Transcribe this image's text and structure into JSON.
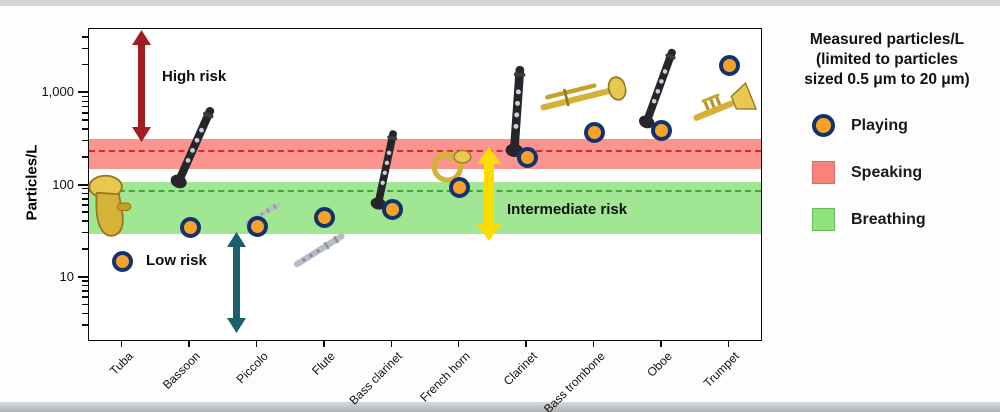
{
  "legend": {
    "title": "Measured particles/L\n(limited to particles\nsized 0.5 μm to 20 μm)",
    "items": [
      {
        "label": "Playing",
        "marker": "circle",
        "fill": "#F6A228",
        "stroke": "#14336E"
      },
      {
        "label": "Speaking",
        "marker": "square",
        "fill": "#F8837A",
        "stroke": "#D96C63"
      },
      {
        "label": "Breathing",
        "marker": "square",
        "fill": "#90E27F",
        "stroke": "#63BE55"
      }
    ]
  },
  "chart_data": {
    "type": "scatter",
    "title": "",
    "xlabel": "",
    "ylabel": "Particles/L",
    "yscale": "log",
    "ylim": [
      2,
      5000
    ],
    "yticks": [
      10,
      100,
      1000
    ],
    "ytick_labels": [
      "10",
      "100",
      "1,000"
    ],
    "grid": false,
    "legend_position": "right",
    "categories": [
      "Tuba",
      "Bassoon",
      "Piccolo",
      "Flute",
      "Bass clarinet",
      "French horn",
      "Clarinet",
      "Bass trombone",
      "Oboe",
      "Trumpet"
    ],
    "series": [
      {
        "name": "Playing",
        "marker": "circle",
        "fill": "#F6A228",
        "stroke": "#14336E",
        "values": [
          15,
          35,
          36,
          45,
          55,
          95,
          200,
          380,
          400,
          2000
        ]
      }
    ],
    "bands": [
      {
        "name": "Speaking",
        "from": 150,
        "to": 320,
        "center_line": 240,
        "fill": "#F8837A",
        "line": "#D22B2B"
      },
      {
        "name": "Breathing",
        "from": 30,
        "to": 110,
        "center_line": 90,
        "fill": "#90E27F",
        "line": "#3DA83D"
      }
    ],
    "annotations": [
      {
        "text": "High risk",
        "arrow_color": "#A21D22"
      },
      {
        "text": "Intermediate risk",
        "arrow_color": "#FFDC00"
      },
      {
        "text": "Low risk",
        "arrow_color": "#1A5F6A"
      }
    ],
    "icons": [
      "tuba-icon",
      "bassoon-icon",
      "piccolo-icon",
      "flute-icon",
      "bass-clarinet-icon",
      "french-horn-icon",
      "clarinet-icon",
      "bass-trombone-icon",
      "oboe-icon",
      "trumpet-icon"
    ]
  }
}
